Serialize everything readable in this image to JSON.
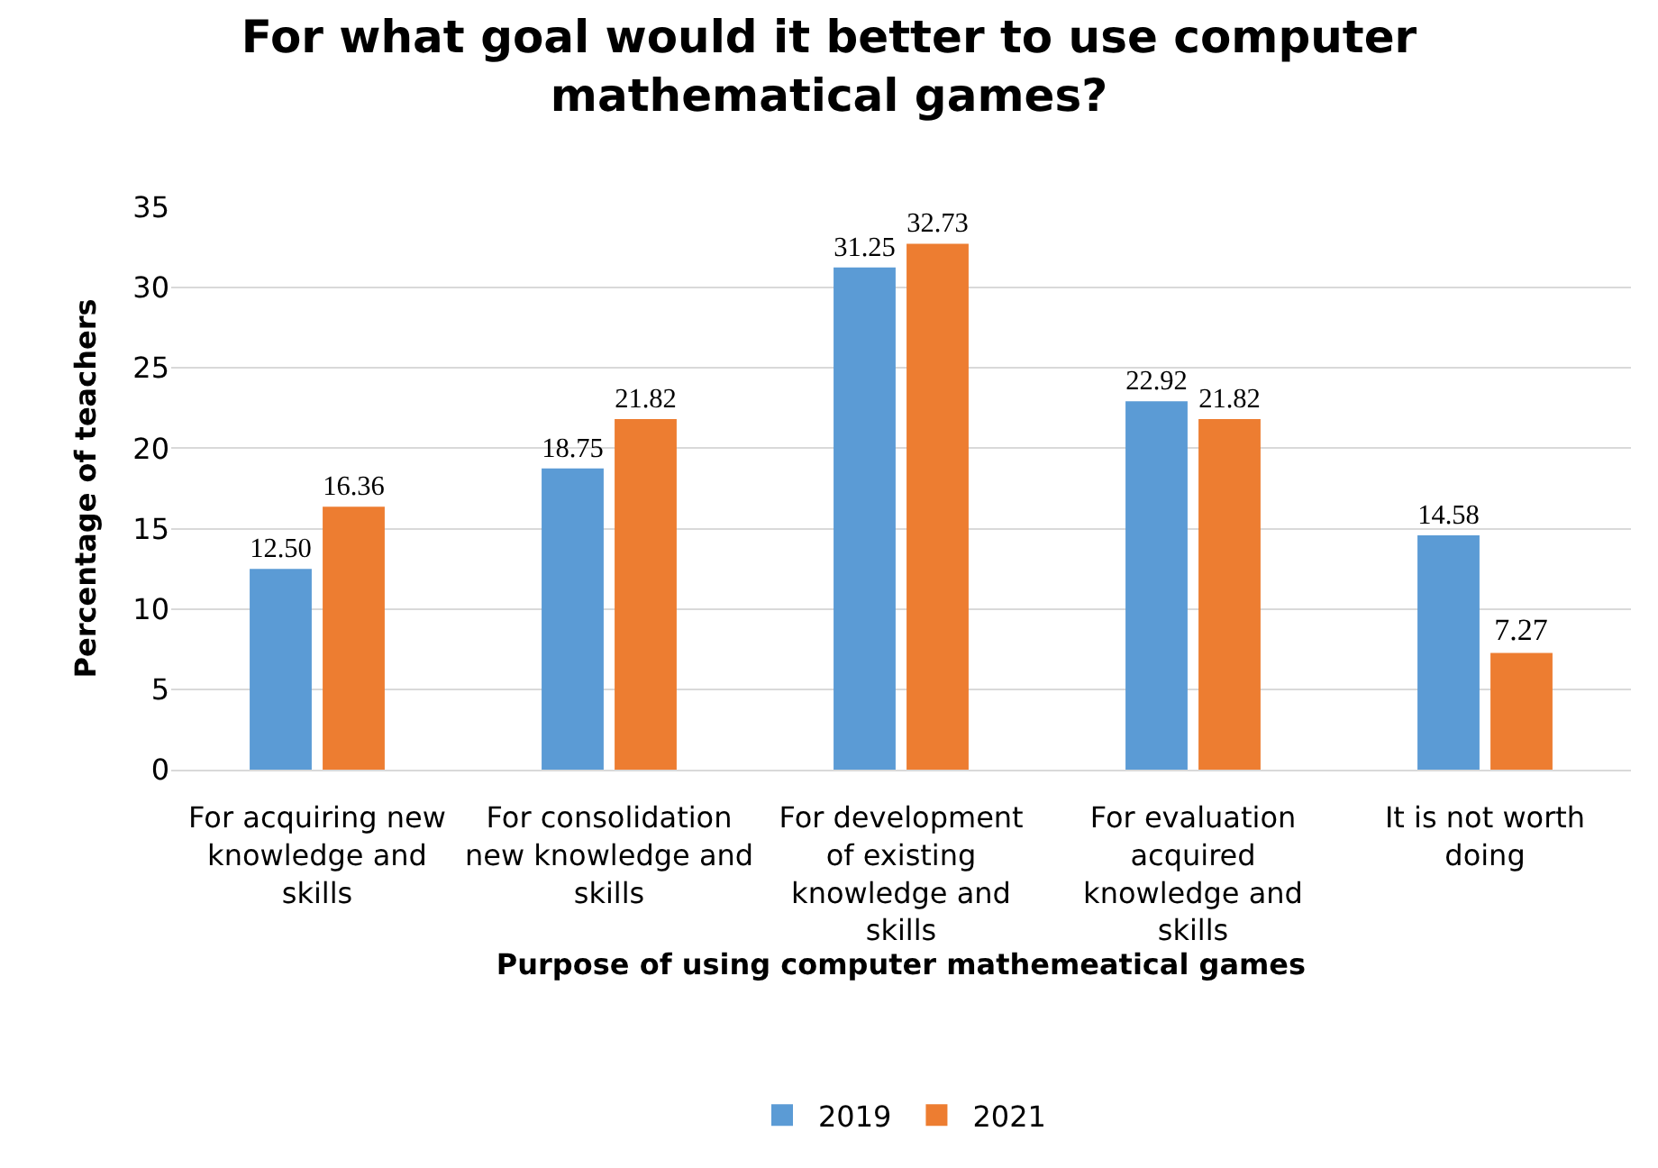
{
  "chart_data": {
    "type": "bar",
    "title": "For what goal would it better to use computer mathematical games?",
    "xlabel": "Purpose of using computer mathemeatical games",
    "ylabel": "Percentage of teachers",
    "categories": [
      "For acquiring new knowledge and skills",
      "For consolidation new knowledge and skills",
      "For development of existing knowledge and skills",
      "For evaluation acquired knowledge and skills",
      "It is not worth doing"
    ],
    "series": [
      {
        "name": "2019",
        "color": "#5b9bd5",
        "values": [
          12.5,
          18.75,
          31.25,
          22.92,
          14.58
        ],
        "value_labels": [
          "12.50",
          "18.75",
          "31.25",
          "22.92",
          "14.58"
        ]
      },
      {
        "name": "2021",
        "color": "#ed7d31",
        "values": [
          16.36,
          21.82,
          32.73,
          21.82,
          7.27
        ],
        "value_labels": [
          "16.36",
          "21.82",
          "32.73",
          "21.82",
          "7.27"
        ]
      }
    ],
    "ylim": [
      0,
      35
    ],
    "yticks": [
      0,
      5,
      10,
      15,
      20,
      25,
      30,
      35
    ],
    "grid": "y",
    "legend": "bottom"
  }
}
